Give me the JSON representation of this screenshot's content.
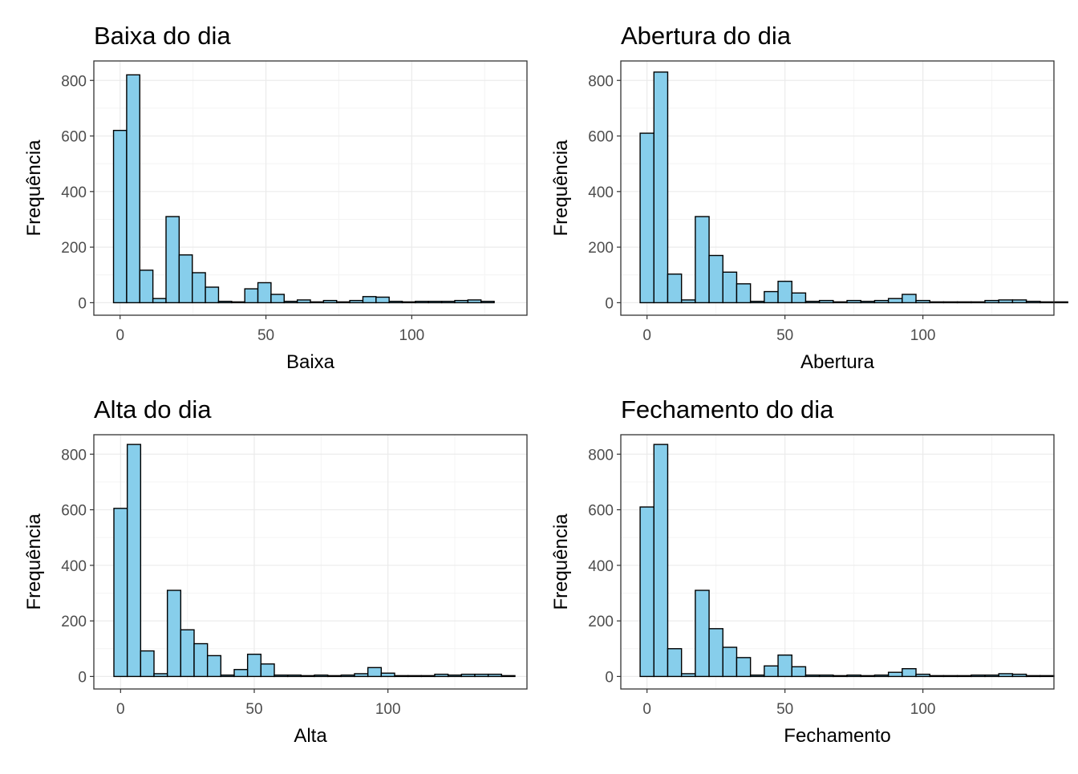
{
  "chart_data": [
    {
      "type": "bar",
      "title": "Baixa do dia",
      "xlabel": "Baixa",
      "ylabel": "Frequência",
      "xlim": [
        -9.0,
        139.5
      ],
      "ylim": [
        -45,
        870
      ],
      "xticks": [
        0,
        50,
        100
      ],
      "yticks": [
        0,
        200,
        400,
        600,
        800
      ],
      "grid": true,
      "bin_width": 4.5,
      "bin_start": -2.25,
      "values": [
        620,
        820,
        117,
        15,
        310,
        172,
        108,
        56,
        5,
        3,
        50,
        72,
        30,
        5,
        10,
        3,
        8,
        3,
        8,
        22,
        20,
        5,
        3,
        5,
        5,
        5,
        8,
        10,
        5
      ]
    },
    {
      "type": "bar",
      "title": "Abertura do dia",
      "xlabel": "Abertura",
      "ylabel": "Frequência",
      "xlim": [
        -9.5,
        147.5
      ],
      "ylim": [
        -45,
        870
      ],
      "xticks": [
        0,
        50,
        100
      ],
      "yticks": [
        0,
        200,
        400,
        600,
        800
      ],
      "grid": true,
      "bin_width": 5.0,
      "bin_start": -2.5,
      "values": [
        610,
        830,
        103,
        10,
        310,
        170,
        110,
        68,
        5,
        40,
        77,
        35,
        5,
        8,
        3,
        8,
        5,
        8,
        15,
        30,
        8,
        3,
        3,
        3,
        3,
        8,
        10,
        10,
        5,
        3,
        3
      ]
    },
    {
      "type": "bar",
      "title": "Alta do dia",
      "xlabel": "Alta",
      "ylabel": "Frequência",
      "xlim": [
        -10.0,
        152.0
      ],
      "ylim": [
        -45,
        870
      ],
      "xticks": [
        0,
        50,
        100
      ],
      "yticks": [
        0,
        200,
        400,
        600,
        800
      ],
      "grid": true,
      "bin_width": 5.0,
      "bin_start": -2.5,
      "values": [
        605,
        835,
        92,
        10,
        310,
        168,
        118,
        75,
        5,
        25,
        80,
        45,
        5,
        5,
        3,
        5,
        3,
        5,
        10,
        32,
        12,
        3,
        3,
        3,
        8,
        5,
        8,
        8,
        8,
        3
      ]
    },
    {
      "type": "bar",
      "title": "Fechamento do dia",
      "xlabel": "Fechamento",
      "ylabel": "Frequência",
      "xlim": [
        -9.5,
        147.5
      ],
      "ylim": [
        -45,
        870
      ],
      "xticks": [
        0,
        50,
        100
      ],
      "yticks": [
        0,
        200,
        400,
        600,
        800
      ],
      "grid": true,
      "bin_width": 5.0,
      "bin_start": -2.5,
      "values": [
        610,
        835,
        100,
        10,
        310,
        172,
        105,
        68,
        5,
        38,
        77,
        35,
        5,
        5,
        3,
        5,
        3,
        5,
        15,
        28,
        8,
        3,
        3,
        3,
        5,
        5,
        10,
        8,
        3,
        3
      ]
    }
  ],
  "colors": {
    "bar_fill": "#87ceeb",
    "bar_stroke": "#000000",
    "panel_border": "#333333",
    "grid_major": "#ebebeb",
    "grid_minor": "#f4f4f4",
    "tick_text": "#4d4d4d",
    "title_text": "#000000"
  }
}
